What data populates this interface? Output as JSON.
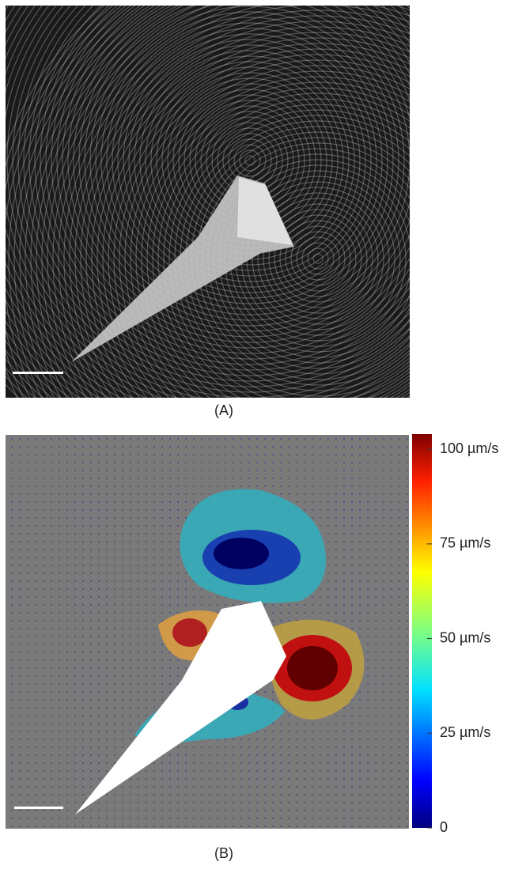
{
  "panels": [
    {
      "label": "(A)"
    },
    {
      "label": "(B)"
    }
  ],
  "colorbar": {
    "range": [
      0,
      104
    ],
    "ticks": [
      {
        "value": 100,
        "label": "100 µm/s"
      },
      {
        "value": 75,
        "label": "75 µm/s"
      },
      {
        "value": 50,
        "label": "50 µm/s"
      },
      {
        "value": 25,
        "label": "25 µm/s"
      },
      0
    ]
  }
}
